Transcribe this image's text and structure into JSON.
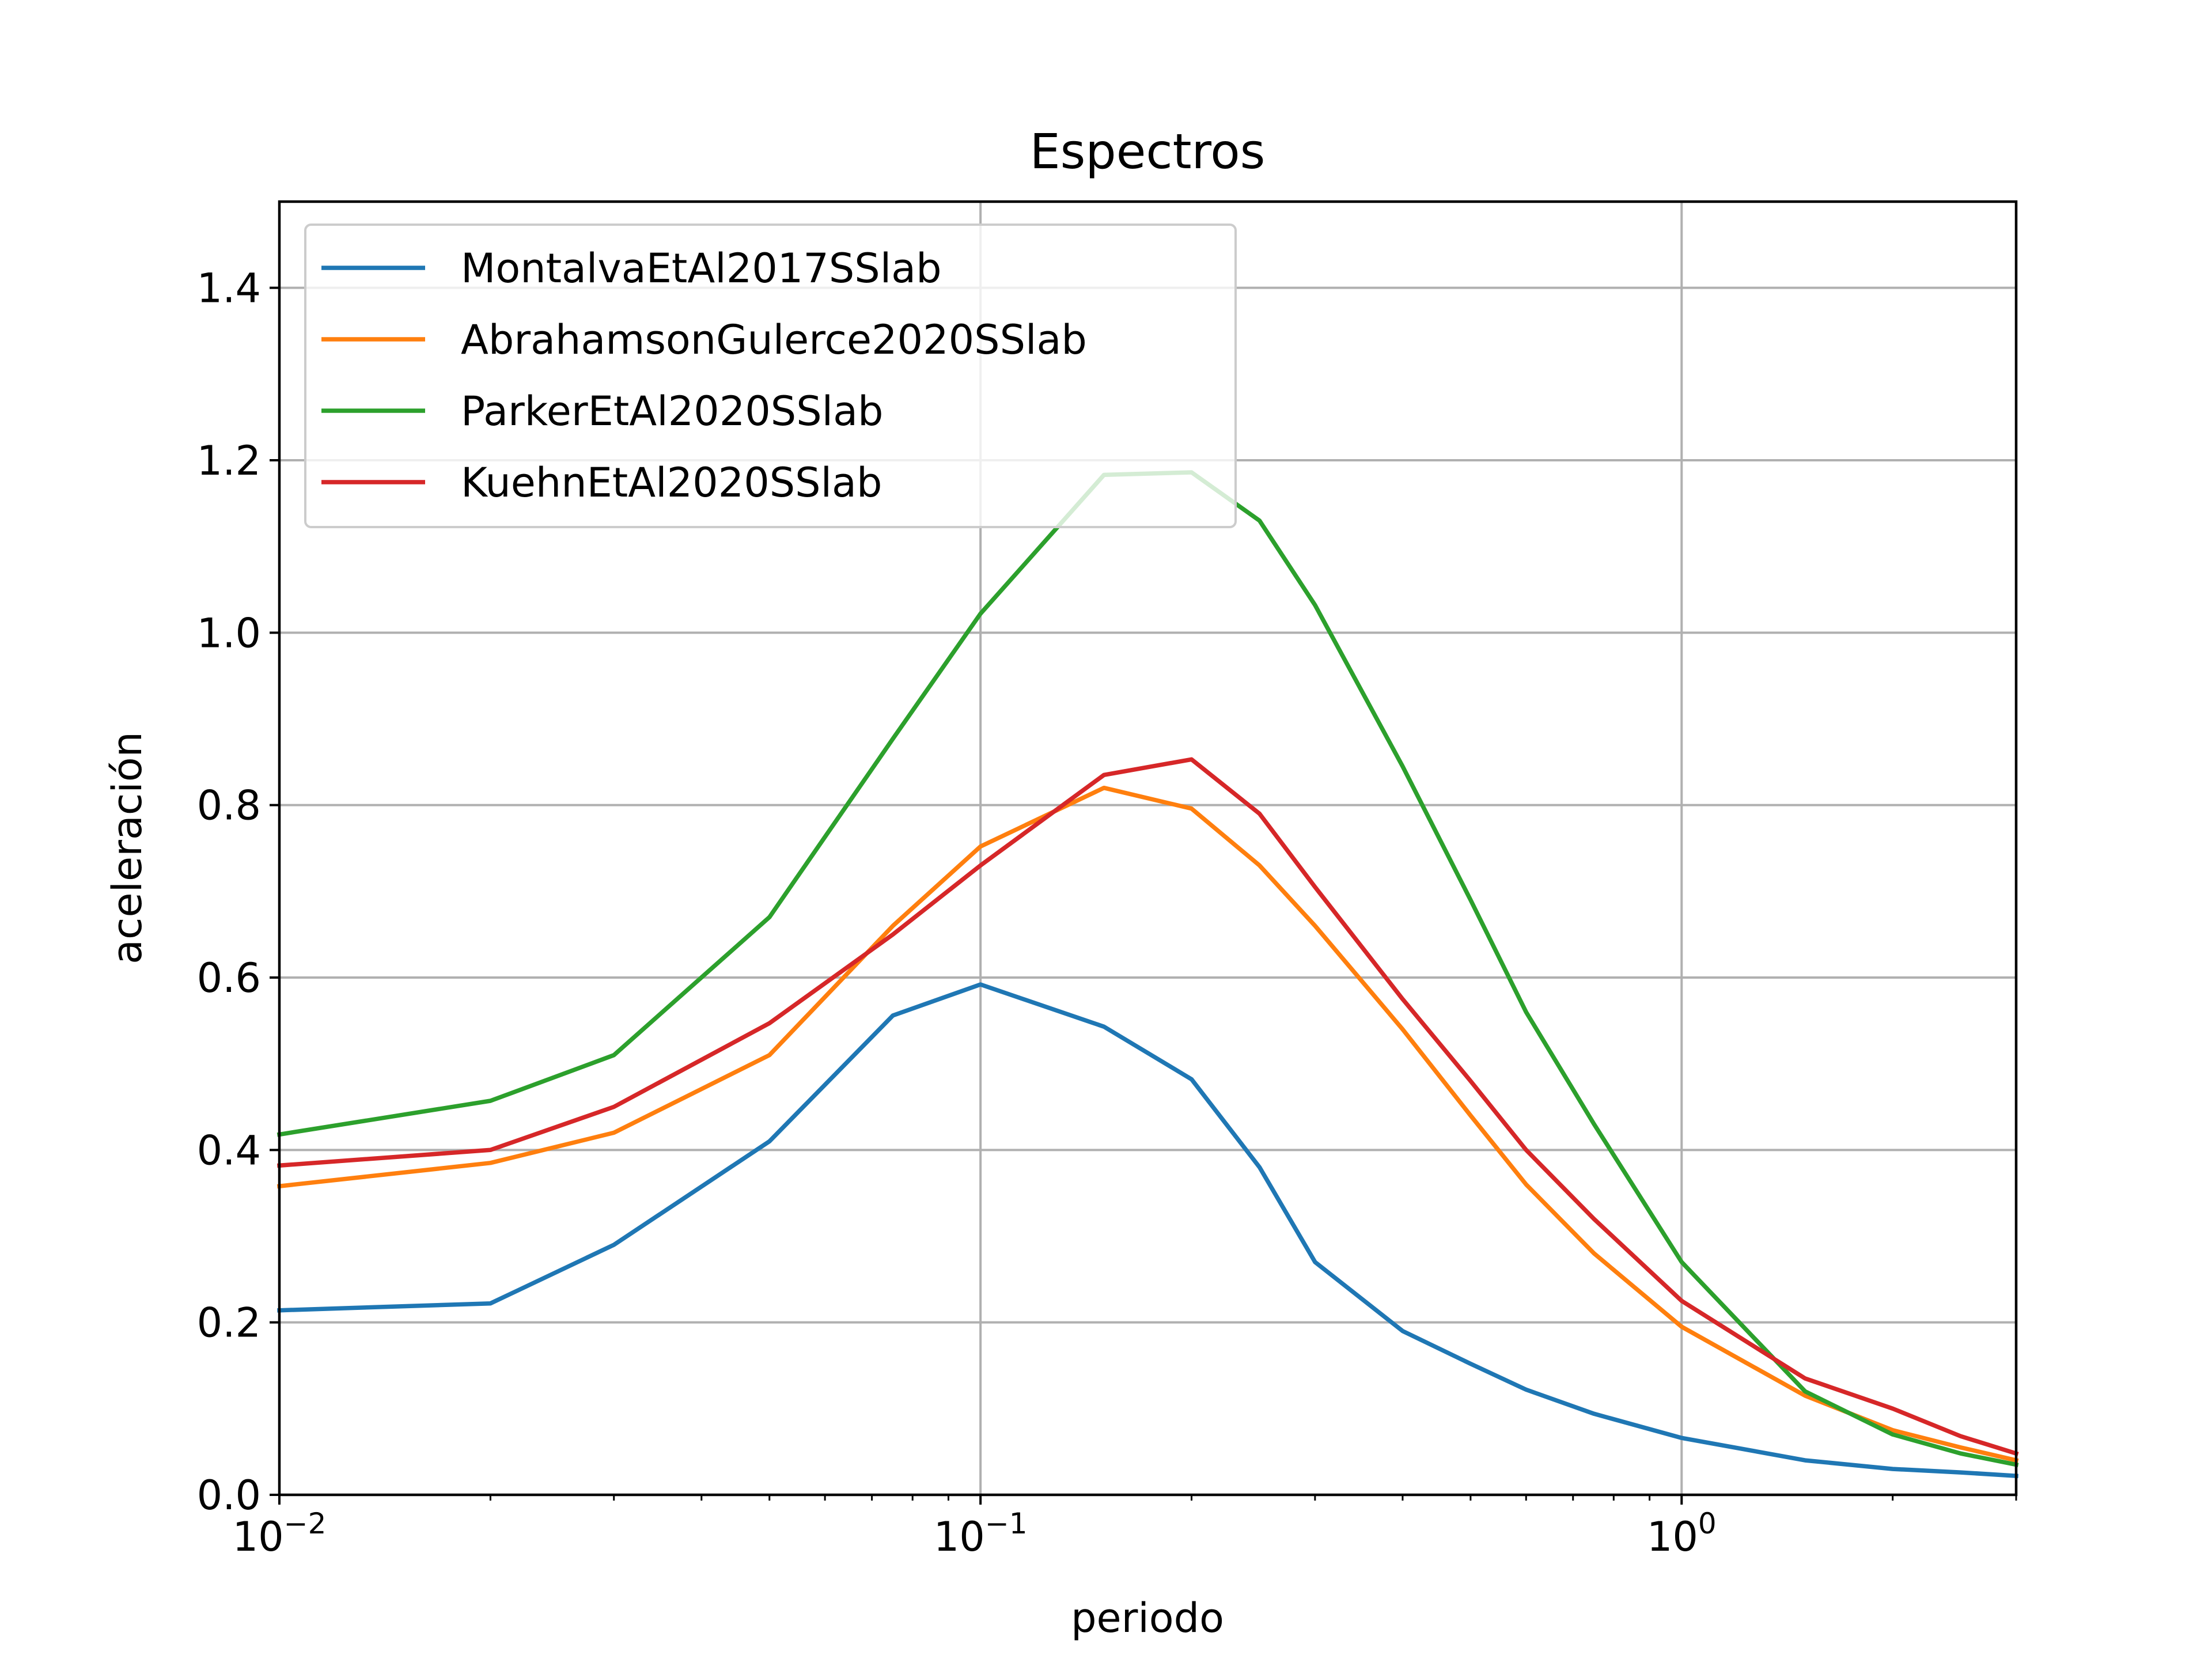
{
  "chart_data": {
    "type": "line",
    "title": "Espectros",
    "xlabel": "periodo",
    "ylabel": "aceleración",
    "xscale": "log",
    "xlim": [
      0.01,
      3
    ],
    "ylim": [
      0,
      1.5
    ],
    "grid": true,
    "legend_position": "upper-left",
    "x_ticks": [
      {
        "value": 0.01,
        "base": "10",
        "exp": "−2"
      },
      {
        "value": 0.1,
        "base": "10",
        "exp": "−1"
      },
      {
        "value": 1,
        "base": "10",
        "exp": "0"
      }
    ],
    "y_ticks": [
      {
        "value": 0.0,
        "label": "0.0"
      },
      {
        "value": 0.2,
        "label": "0.2"
      },
      {
        "value": 0.4,
        "label": "0.4"
      },
      {
        "value": 0.6,
        "label": "0.6"
      },
      {
        "value": 0.8,
        "label": "0.8"
      },
      {
        "value": 1.0,
        "label": "1.0"
      },
      {
        "value": 1.2,
        "label": "1.2"
      },
      {
        "value": 1.4,
        "label": "1.4"
      }
    ],
    "x": [
      0.01,
      0.02,
      0.03,
      0.05,
      0.075,
      0.1,
      0.15,
      0.2,
      0.25,
      0.3,
      0.4,
      0.5,
      0.6,
      0.75,
      1.0,
      1.5,
      2.0,
      2.5,
      3.0
    ],
    "series": [
      {
        "name": "MontalvaEtAl2017SSlab",
        "color": "#1f77b4",
        "values": [
          0.214,
          0.222,
          0.29,
          0.41,
          0.556,
          0.592,
          0.543,
          0.482,
          0.38,
          0.27,
          0.19,
          0.152,
          0.122,
          0.094,
          0.066,
          0.04,
          0.03,
          0.026,
          0.022
        ]
      },
      {
        "name": "AbrahamsonGulerce2020SSlab",
        "color": "#ff7f0e",
        "values": [
          0.358,
          0.385,
          0.42,
          0.51,
          0.66,
          0.752,
          0.82,
          0.796,
          0.73,
          0.66,
          0.54,
          0.44,
          0.36,
          0.28,
          0.195,
          0.115,
          0.075,
          0.055,
          0.04
        ]
      },
      {
        "name": "ParkerEtAl2020SSlab",
        "color": "#2ca02c",
        "values": [
          0.418,
          0.457,
          0.51,
          0.67,
          0.877,
          1.022,
          1.183,
          1.186,
          1.13,
          1.032,
          0.845,
          0.69,
          0.56,
          0.43,
          0.27,
          0.12,
          0.07,
          0.048,
          0.035
        ]
      },
      {
        "name": "KuehnEtAl2020SSlab",
        "color": "#d62728",
        "values": [
          0.382,
          0.4,
          0.45,
          0.547,
          0.65,
          0.73,
          0.835,
          0.853,
          0.79,
          0.705,
          0.575,
          0.48,
          0.4,
          0.32,
          0.225,
          0.135,
          0.1,
          0.068,
          0.048
        ]
      }
    ]
  }
}
